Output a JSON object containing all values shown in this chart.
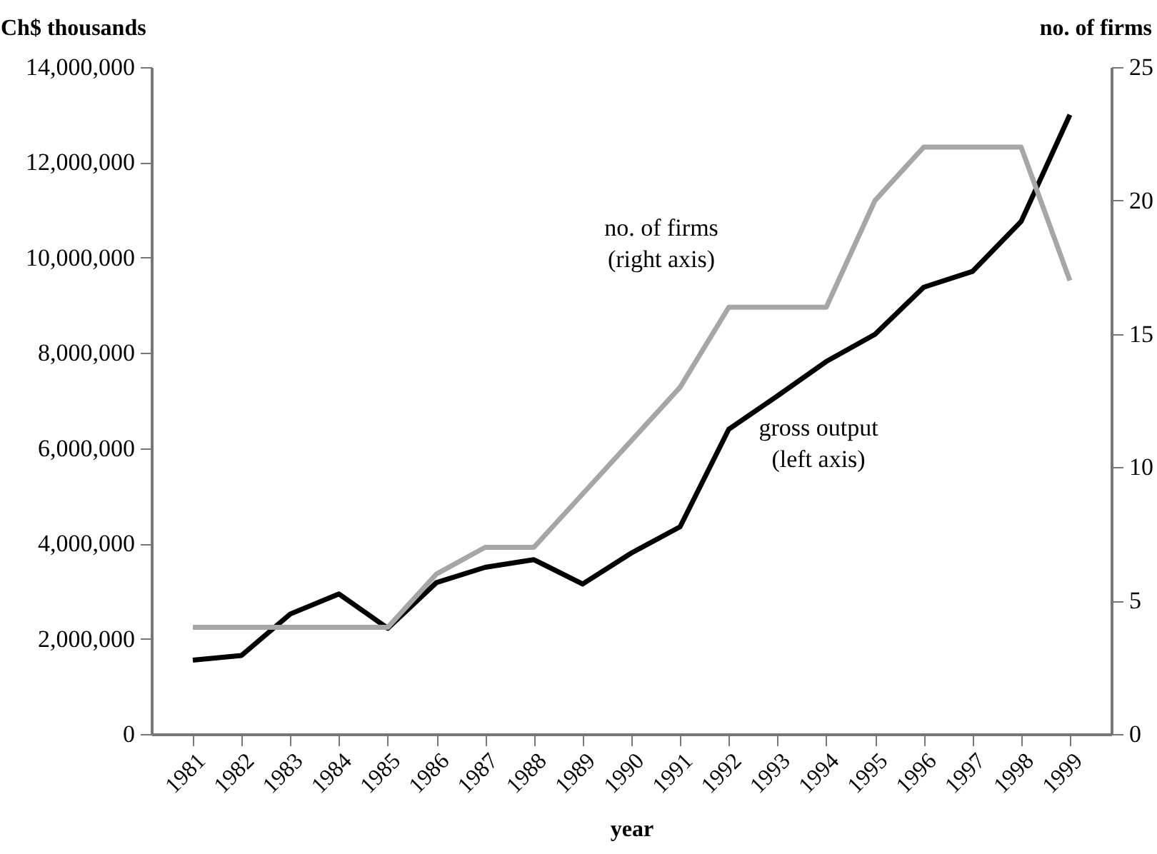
{
  "chart_data": {
    "type": "line",
    "xlabel": "year",
    "ylabel": "Ch$ thousands",
    "y2label": "no. of firms",
    "categories": [
      "1981",
      "1982",
      "1983",
      "1984",
      "1985",
      "1986",
      "1987",
      "1988",
      "1989",
      "1990",
      "1991",
      "1992",
      "1993",
      "1994",
      "1995",
      "1996",
      "1997",
      "1998",
      "1999"
    ],
    "series": [
      {
        "name": "gross output\n(left axis)",
        "color": "#000000",
        "values": [
          1550000,
          1650000,
          2520000,
          2940000,
          2220000,
          3180000,
          3500000,
          3660000,
          3150000,
          3800000,
          4350000,
          6400000,
          7100000,
          7820000,
          8390000,
          9380000,
          9710000,
          10760000,
          13000000
        ]
      },
      {
        "name": "no. of firms\n(right axis)",
        "color": "#a6a6a6",
        "axis": "y2",
        "values": [
          4,
          4,
          4,
          4,
          4,
          6,
          7,
          7,
          9,
          11,
          13,
          16,
          16,
          16,
          20,
          22,
          22,
          22,
          17
        ]
      }
    ],
    "ylim": [
      0,
      14000000
    ],
    "yticks": [
      0,
      {
        "value": 2000000,
        "label": "2,000,000"
      },
      {
        "value": 4000000,
        "label": "4,000,000"
      },
      {
        "value": 6000000,
        "label": "6,000,000"
      },
      {
        "value": 8000000,
        "label": "8,000,000"
      },
      {
        "value": 10000000,
        "label": "10,000,000"
      },
      {
        "value": 12000000,
        "label": "12,000,000"
      },
      {
        "value": 14000000,
        "label": "14,000,000"
      }
    ],
    "y2lim": [
      0,
      25
    ],
    "y2ticks": [
      0,
      5,
      10,
      15,
      20,
      25
    ],
    "grid": false,
    "line_style": "solid",
    "marker": "none"
  }
}
